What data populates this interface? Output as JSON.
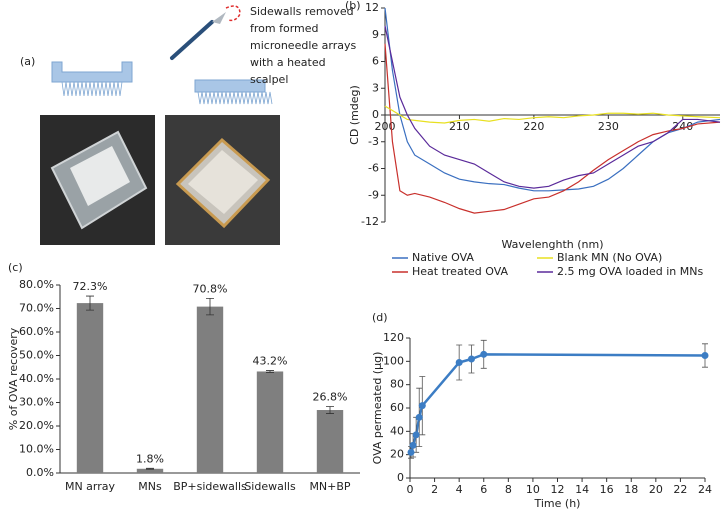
{
  "panel_a": {
    "label": "(a)",
    "annotation": [
      "Sidewalls removed",
      "from formed",
      "microneedle arrays",
      "with a heated",
      "scalpel"
    ]
  },
  "chart_data": [
    {
      "type": "line",
      "panel_label": "(b)",
      "x_label": "Wavelenghth (nm)",
      "y_label": "CD (mdeg)",
      "x": [
        200,
        201,
        202,
        203,
        204,
        206,
        208,
        210,
        212,
        214,
        216,
        218,
        220,
        222,
        224,
        226,
        228,
        230,
        232,
        234,
        236,
        238,
        240,
        242,
        245
      ],
      "series": [
        {
          "name": "Native OVA",
          "color": "#3a6fc0",
          "values": [
            12,
            5,
            0,
            -3,
            -4.5,
            -5.5,
            -6.5,
            -7.2,
            -7.5,
            -7.7,
            -7.8,
            -8.2,
            -8.5,
            -8.5,
            -8.4,
            -8.3,
            -8,
            -7.2,
            -6,
            -4.5,
            -3,
            -2,
            -1.5,
            -0.8,
            -0.5
          ]
        },
        {
          "name": "Heat treated OVA",
          "color": "#c8302c",
          "values": [
            8,
            -3,
            -8.5,
            -9,
            -8.8,
            -9.2,
            -9.8,
            -10.5,
            -11,
            -10.8,
            -10.6,
            -10,
            -9.4,
            -9.2,
            -8.5,
            -7.5,
            -6.2,
            -5,
            -4,
            -3,
            -2.2,
            -1.8,
            -1.5,
            -1,
            -0.8
          ]
        },
        {
          "name": "Blank MN (No OVA)",
          "color": "#e8e020",
          "values": [
            1,
            0.5,
            0,
            -0.5,
            -0.6,
            -0.8,
            -0.9,
            -0.6,
            -0.5,
            -0.7,
            -0.4,
            -0.5,
            -0.3,
            -0.2,
            -0.3,
            -0.1,
            0,
            0.2,
            0.2,
            0.1,
            0.2,
            0,
            -0.1,
            -0.2,
            -0.3
          ]
        },
        {
          "name": "2.5 mg OVA loaded in MNs",
          "color": "#5a2a9a",
          "values": [
            10,
            6,
            2,
            0,
            -1.5,
            -3.5,
            -4.5,
            -5,
            -5.5,
            -6.5,
            -7.5,
            -8,
            -8.2,
            -8,
            -7.3,
            -6.8,
            -6.5,
            -5.5,
            -4.5,
            -3.5,
            -3,
            -2,
            -0.5,
            -0.5,
            -0.8
          ]
        }
      ],
      "xlim": [
        200,
        245
      ],
      "ylim": [
        -12,
        12
      ],
      "xticks": [
        200,
        210,
        220,
        230,
        240
      ],
      "yticks": [
        -12,
        -9,
        -6,
        -3,
        0,
        3,
        6,
        9,
        12
      ],
      "x_axis_at": 0
    },
    {
      "type": "bar",
      "panel_label": "(c)",
      "y_label": "% of OVA recovery",
      "categories": [
        "MN array",
        "MNs",
        "BP+sidewalls",
        "Sidewalls",
        "MN+BP"
      ],
      "values": [
        72.3,
        1.8,
        70.8,
        43.2,
        26.8
      ],
      "value_labels": [
        "72.3%",
        "1.8%",
        "70.8%",
        "43.2%",
        "26.8%"
      ],
      "errors": [
        3,
        0.2,
        3.5,
        0.4,
        1.5
      ],
      "color": "#7f7f7f",
      "ylim": [
        0,
        80
      ],
      "yticks": [
        {
          "value": 0,
          "label": "0.0%"
        },
        {
          "value": 10,
          "label": "10.0%"
        },
        {
          "value": 20,
          "label": "20.0%"
        },
        {
          "value": 30,
          "label": "30.0%"
        },
        {
          "value": 40,
          "label": "40.0%"
        },
        {
          "value": 50,
          "label": "50.0%"
        },
        {
          "value": 60,
          "label": "60.0%"
        },
        {
          "value": 70,
          "label": "70.0%"
        },
        {
          "value": 80,
          "label": "80.0%"
        }
      ]
    },
    {
      "type": "line",
      "panel_label": "(d)",
      "x_label": "Time (h)",
      "y_label": "OVA permeated (µg)",
      "x": [
        0.083,
        0.25,
        0.5,
        0.75,
        1,
        4,
        5,
        6,
        24
      ],
      "series": [
        {
          "color": "#3c7dc4",
          "values": [
            22,
            28,
            37,
            52,
            62,
            99,
            102,
            106,
            105
          ],
          "errors": [
            5,
            10,
            15,
            25,
            25,
            15,
            12,
            12,
            10
          ]
        }
      ],
      "markers": true,
      "xlim": [
        0,
        24
      ],
      "ylim": [
        0,
        120
      ],
      "xticks": [
        0,
        2,
        4,
        6,
        8,
        10,
        12,
        14,
        16,
        18,
        20,
        22,
        24
      ],
      "yticks": [
        0,
        20,
        40,
        60,
        80,
        100,
        120
      ]
    }
  ]
}
